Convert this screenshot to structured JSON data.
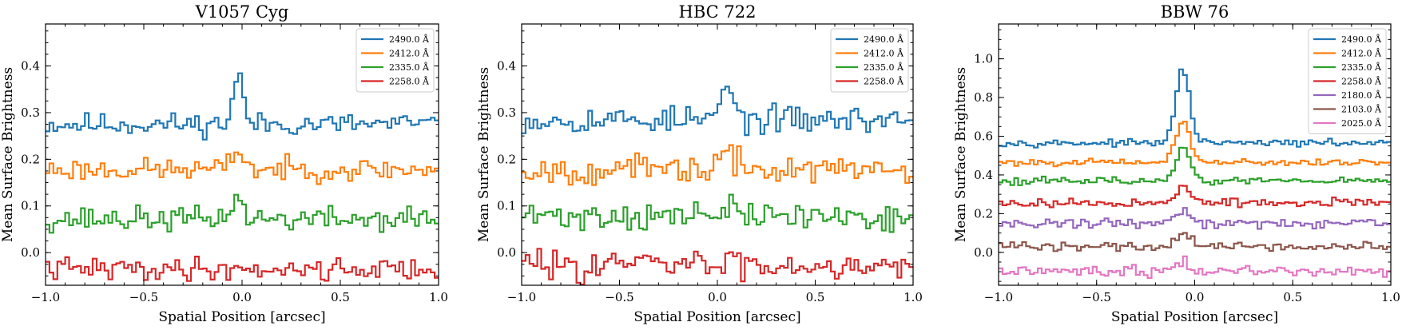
{
  "chart_data": [
    {
      "type": "line",
      "title": "V1057 Cyg",
      "xlabel": "Spatial Position [arcsec]",
      "ylabel": "Mean Surface Brightness",
      "xlim": [
        -1.0,
        1.0
      ],
      "ylim": [
        -0.07,
        0.49
      ],
      "xticks": [
        -1.0,
        -0.5,
        0.0,
        0.5,
        1.0
      ],
      "xtick_labels": [
        "−1.0",
        "−0.5",
        "0.0",
        "0.5",
        "1.0"
      ],
      "yticks": [
        0.0,
        0.1,
        0.2,
        0.3,
        0.4
      ],
      "ytick_labels": [
        "0.0",
        "0.1",
        "0.2",
        "0.3",
        "0.4"
      ],
      "legend_position": "top-right",
      "series": [
        {
          "name": "2490.0 Å",
          "color": "#1f77b4",
          "baseline": 0.275,
          "noise": 0.012,
          "peak": 0.105,
          "peak_x": -0.02,
          "peak_width": 0.025,
          "seed": 11
        },
        {
          "name": "2412.0 Å",
          "color": "#ff7f0e",
          "baseline": 0.178,
          "noise": 0.012,
          "peak": 0.045,
          "peak_x": -0.02,
          "peak_width": 0.03,
          "seed": 23
        },
        {
          "name": "2335.0 Å",
          "color": "#2ca02c",
          "baseline": 0.072,
          "noise": 0.013,
          "peak": 0.045,
          "peak_x": -0.03,
          "peak_width": 0.03,
          "seed": 37
        },
        {
          "name": "2258.0 Å",
          "color": "#d62728",
          "baseline": -0.035,
          "noise": 0.012,
          "peak": 0.0,
          "peak_x": 0.0,
          "peak_width": 0.03,
          "seed": 41
        }
      ]
    },
    {
      "type": "line",
      "title": "HBC 722",
      "xlabel": "Spatial Position [arcsec]",
      "ylabel": "Mean Surface Brightness",
      "xlim": [
        -1.0,
        1.0
      ],
      "ylim": [
        -0.07,
        0.49
      ],
      "xticks": [
        -1.0,
        -0.5,
        0.0,
        0.5,
        1.0
      ],
      "xtick_labels": [
        "−1.0",
        "−0.5",
        "0.0",
        "0.5",
        "1.0"
      ],
      "yticks": [
        0.0,
        0.1,
        0.2,
        0.3,
        0.4
      ],
      "ytick_labels": [
        "0.0",
        "0.1",
        "0.2",
        "0.3",
        "0.4"
      ],
      "legend_position": "top-right",
      "series": [
        {
          "name": "2490.0 Å",
          "color": "#1f77b4",
          "baseline": 0.285,
          "noise": 0.014,
          "peak": 0.07,
          "peak_x": 0.05,
          "peak_width": 0.03,
          "seed": 53
        },
        {
          "name": "2412.0 Å",
          "color": "#ff7f0e",
          "baseline": 0.178,
          "noise": 0.015,
          "peak": 0.03,
          "peak_x": 0.05,
          "peak_width": 0.04,
          "seed": 67
        },
        {
          "name": "2335.0 Å",
          "color": "#2ca02c",
          "baseline": 0.078,
          "noise": 0.015,
          "peak": 0.015,
          "peak_x": 0.05,
          "peak_width": 0.04,
          "seed": 71
        },
        {
          "name": "2258.0 Å",
          "color": "#d62728",
          "baseline": -0.025,
          "noise": 0.016,
          "peak": 0.0,
          "peak_x": 0.0,
          "peak_width": 0.03,
          "seed": 83
        }
      ]
    },
    {
      "type": "line",
      "title": "BBW 76",
      "xlabel": "Spatial Position [arcsec]",
      "ylabel": "Mean Surface Brightness",
      "xlim": [
        -1.0,
        1.0
      ],
      "ylim": [
        -0.17,
        1.18
      ],
      "xticks": [
        -1.0,
        -0.5,
        0.0,
        0.5,
        1.0
      ],
      "xtick_labels": [
        "−1.0",
        "−0.5",
        "0.0",
        "0.5",
        "1.0"
      ],
      "yticks": [
        0.0,
        0.2,
        0.4,
        0.6,
        0.8,
        1.0
      ],
      "ytick_labels": [
        "0.0",
        "0.2",
        "0.4",
        "0.6",
        "0.8",
        "1.0"
      ],
      "legend_position": "top-right",
      "series": [
        {
          "name": "2490.0 Å",
          "color": "#1f77b4",
          "baseline": 0.565,
          "noise": 0.008,
          "peak": 0.38,
          "peak_x": -0.06,
          "peak_width": 0.035,
          "seed": 97
        },
        {
          "name": "2412.0 Å",
          "color": "#ff7f0e",
          "baseline": 0.465,
          "noise": 0.008,
          "peak": 0.22,
          "peak_x": -0.06,
          "peak_width": 0.035,
          "seed": 101
        },
        {
          "name": "2335.0 Å",
          "color": "#2ca02c",
          "baseline": 0.37,
          "noise": 0.009,
          "peak": 0.17,
          "peak_x": -0.06,
          "peak_width": 0.035,
          "seed": 113
        },
        {
          "name": "2258.0 Å",
          "color": "#d62728",
          "baseline": 0.255,
          "noise": 0.011,
          "peak": 0.09,
          "peak_x": -0.06,
          "peak_width": 0.035,
          "seed": 127
        },
        {
          "name": "2180.0 Å",
          "color": "#9467bd",
          "baseline": 0.15,
          "noise": 0.012,
          "peak": 0.06,
          "peak_x": -0.06,
          "peak_width": 0.04,
          "seed": 131
        },
        {
          "name": "2103.0 Å",
          "color": "#8c564b",
          "baseline": 0.03,
          "noise": 0.013,
          "peak": 0.06,
          "peak_x": -0.06,
          "peak_width": 0.04,
          "seed": 139
        },
        {
          "name": "2025.0 Å",
          "color": "#e377c2",
          "baseline": -0.095,
          "noise": 0.014,
          "peak": 0.035,
          "peak_x": -0.06,
          "peak_width": 0.04,
          "seed": 149
        }
      ]
    }
  ]
}
